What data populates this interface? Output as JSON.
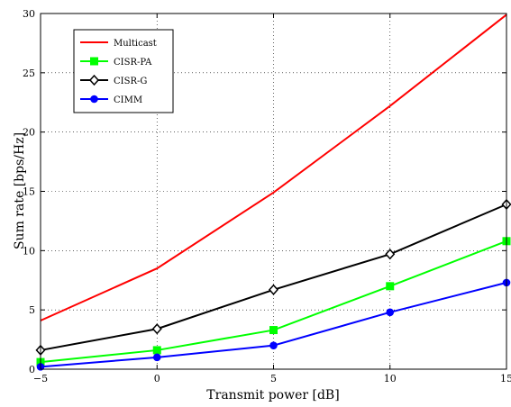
{
  "chart_data": {
    "type": "line",
    "title": "",
    "xlabel": "Transmit power [dB]",
    "ylabel": "Sum rate [bps/Hz]",
    "xlim": [
      -5,
      15
    ],
    "ylim": [
      0,
      30
    ],
    "xticks": [
      -5,
      0,
      5,
      10,
      15
    ],
    "yticks": [
      0,
      5,
      10,
      15,
      20,
      25,
      30
    ],
    "grid": true,
    "legend_position": "top-left",
    "x": [
      -5,
      0,
      5,
      10,
      15
    ],
    "series": [
      {
        "name": "Multicast",
        "values": [
          4.1,
          8.5,
          14.9,
          22.2,
          29.9
        ],
        "color": "#ff0000",
        "marker": "none"
      },
      {
        "name": "CISR-PA",
        "values": [
          0.6,
          1.6,
          3.3,
          7.0,
          10.8
        ],
        "color": "#00ff00",
        "marker": "square"
      },
      {
        "name": "CISR-G",
        "values": [
          1.6,
          3.4,
          6.7,
          9.7,
          13.9
        ],
        "color": "#000000",
        "marker": "diamond"
      },
      {
        "name": "CIMM",
        "values": [
          0.2,
          1.0,
          2.0,
          4.8,
          7.3
        ],
        "color": "#0000ff",
        "marker": "circle"
      }
    ]
  }
}
